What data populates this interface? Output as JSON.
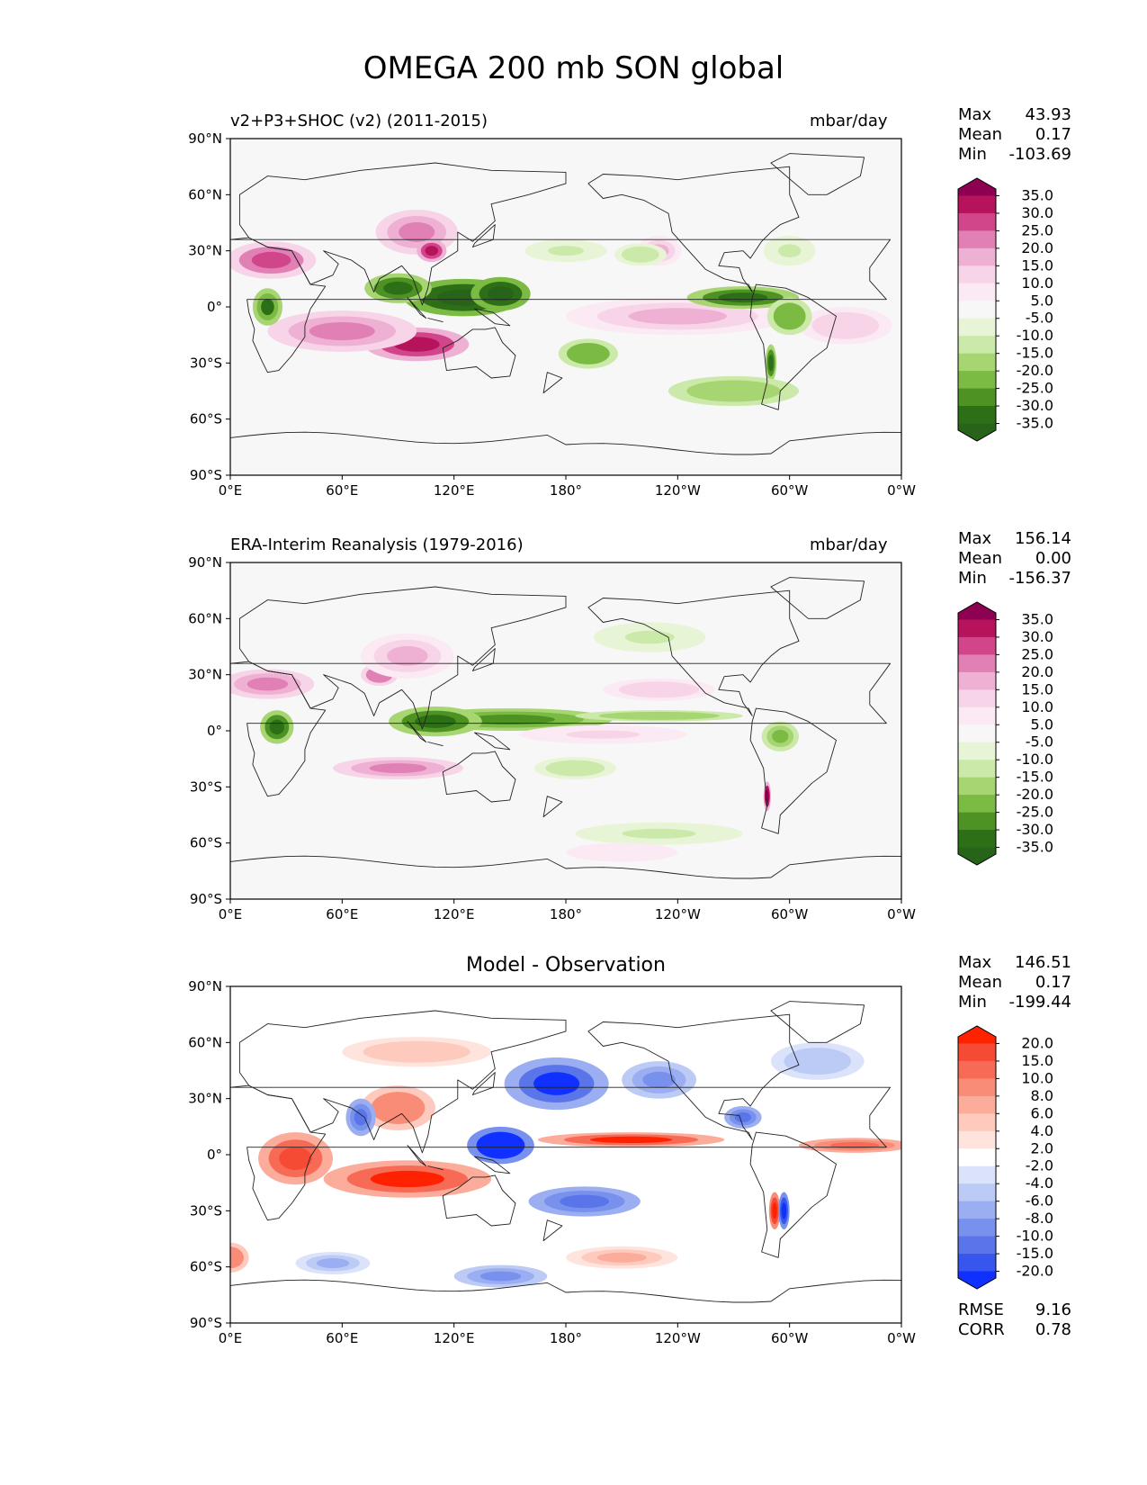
{
  "figure": {
    "title": "OMEGA 200 mb SON global"
  },
  "chart_data": [
    {
      "type": "heatmap",
      "panel": "test",
      "title_left": "v2+P3+SHOC (v2) (2011-2015)",
      "title_right": "mbar/day",
      "x_ticks": [
        "0°E",
        "60°E",
        "120°E",
        "180°",
        "120°W",
        "60°W",
        "0°W"
      ],
      "y_ticks": [
        "90°N",
        "60°N",
        "30°N",
        "0°",
        "30°S",
        "60°S",
        "90°S"
      ],
      "xlim": [
        0,
        360
      ],
      "ylim": [
        -90,
        90
      ],
      "stats": {
        "max_label": "Max",
        "max": "43.93",
        "mean_label": "Mean",
        "mean": "0.17",
        "min_label": "Min",
        "min": "-103.69"
      },
      "colorbar": {
        "labels": [
          "35.0",
          "30.0",
          "25.0",
          "20.0",
          "15.0",
          "10.0",
          "5.0",
          "-5.0",
          "-10.0",
          "-15.0",
          "-20.0",
          "-25.0",
          "-30.0",
          "-35.0"
        ],
        "colors": [
          "#8e0152",
          "#b7135d",
          "#d1458b",
          "#e080b4",
          "#efb1d3",
          "#f7d4e7",
          "#fbe9f3",
          "#f7f7f7",
          "#e7f5d6",
          "#cbe9a8",
          "#a6d572",
          "#7bbb43",
          "#4d9222",
          "#2d6f17",
          "#276419"
        ]
      },
      "features": [
        {
          "lon": 100,
          "lat": -20,
          "v": 32,
          "rx": 28,
          "ry": 9
        },
        {
          "lon": 60,
          "lat": -13,
          "v": 18,
          "rx": 40,
          "ry": 11
        },
        {
          "lon": 22,
          "lat": 25,
          "v": 25,
          "rx": 24,
          "ry": 10
        },
        {
          "lon": 100,
          "lat": 40,
          "v": 18,
          "rx": 22,
          "ry": 12
        },
        {
          "lon": 108,
          "lat": 30,
          "v": 30,
          "rx": 8,
          "ry": 6
        },
        {
          "lon": 240,
          "lat": -5,
          "v": 14,
          "rx": 60,
          "ry": 10
        },
        {
          "lon": 230,
          "lat": 30,
          "v": 14,
          "rx": 12,
          "ry": 8
        },
        {
          "lon": 330,
          "lat": -10,
          "v": 12,
          "rx": 25,
          "ry": 10
        },
        {
          "lon": 125,
          "lat": 5,
          "v": -36,
          "rx": 32,
          "ry": 10
        },
        {
          "lon": 145,
          "lat": 7,
          "v": -38,
          "rx": 16,
          "ry": 9
        },
        {
          "lon": 90,
          "lat": 10,
          "v": -30,
          "rx": 18,
          "ry": 8
        },
        {
          "lon": 20,
          "lat": 0,
          "v": -28,
          "rx": 8,
          "ry": 10
        },
        {
          "lon": 192,
          "lat": -25,
          "v": -22,
          "rx": 16,
          "ry": 8
        },
        {
          "lon": 275,
          "lat": 5,
          "v": -30,
          "rx": 30,
          "ry": 6
        },
        {
          "lon": 300,
          "lat": -5,
          "v": -22,
          "rx": 12,
          "ry": 10
        },
        {
          "lon": 290,
          "lat": -30,
          "v": -30,
          "rx": 3,
          "ry": 10
        },
        {
          "lon": 270,
          "lat": -45,
          "v": -16,
          "rx": 35,
          "ry": 8
        },
        {
          "lon": 220,
          "lat": 28,
          "v": -10,
          "rx": 14,
          "ry": 6
        },
        {
          "lon": 300,
          "lat": 30,
          "v": -8,
          "rx": 14,
          "ry": 8
        },
        {
          "lon": 180,
          "lat": 30,
          "v": -8,
          "rx": 22,
          "ry": 6
        }
      ]
    },
    {
      "type": "heatmap",
      "panel": "reference",
      "title_left": "ERA-Interim Reanalysis (1979-2016)",
      "title_right": "mbar/day",
      "x_ticks": [
        "0°E",
        "60°E",
        "120°E",
        "180°",
        "120°W",
        "60°W",
        "0°W"
      ],
      "y_ticks": [
        "90°N",
        "60°N",
        "30°N",
        "0°",
        "30°S",
        "60°S",
        "90°S"
      ],
      "xlim": [
        0,
        360
      ],
      "ylim": [
        -90,
        90
      ],
      "stats": {
        "max_label": "Max",
        "max": "156.14",
        "mean_label": "Mean",
        "mean": "0.00",
        "min_label": "Min",
        "min": "-156.37"
      },
      "colorbar": {
        "labels": [
          "35.0",
          "30.0",
          "25.0",
          "20.0",
          "15.0",
          "10.0",
          "5.0",
          "-5.0",
          "-10.0",
          "-15.0",
          "-20.0",
          "-25.0",
          "-30.0",
          "-35.0"
        ],
        "colors": [
          "#8e0152",
          "#b7135d",
          "#d1458b",
          "#e080b4",
          "#efb1d3",
          "#f7d4e7",
          "#fbe9f3",
          "#f7f7f7",
          "#e7f5d6",
          "#cbe9a8",
          "#a6d572",
          "#7bbb43",
          "#4d9222",
          "#2d6f17",
          "#276419"
        ]
      },
      "features": [
        {
          "lon": 150,
          "lat": 6,
          "v": -26,
          "rx": 55,
          "ry": 6
        },
        {
          "lon": 110,
          "lat": 5,
          "v": -30,
          "rx": 25,
          "ry": 8
        },
        {
          "lon": 230,
          "lat": 8,
          "v": -16,
          "rx": 45,
          "ry": 3
        },
        {
          "lon": 25,
          "lat": 2,
          "v": -32,
          "rx": 9,
          "ry": 9
        },
        {
          "lon": 295,
          "lat": -3,
          "v": -18,
          "rx": 10,
          "ry": 8
        },
        {
          "lon": 185,
          "lat": -20,
          "v": -12,
          "rx": 22,
          "ry": 6
        },
        {
          "lon": 225,
          "lat": 50,
          "v": -8,
          "rx": 30,
          "ry": 8
        },
        {
          "lon": 230,
          "lat": -55,
          "v": -8,
          "rx": 45,
          "ry": 6
        },
        {
          "lon": 288,
          "lat": -35,
          "v": 35,
          "rx": 2,
          "ry": 8
        },
        {
          "lon": 80,
          "lat": 30,
          "v": 22,
          "rx": 10,
          "ry": 6
        },
        {
          "lon": 95,
          "lat": 40,
          "v": 14,
          "rx": 25,
          "ry": 12
        },
        {
          "lon": 20,
          "lat": 25,
          "v": 18,
          "rx": 25,
          "ry": 8
        },
        {
          "lon": 90,
          "lat": -20,
          "v": 18,
          "rx": 35,
          "ry": 6
        },
        {
          "lon": 230,
          "lat": 22,
          "v": 10,
          "rx": 30,
          "ry": 6
        },
        {
          "lon": 200,
          "lat": -2,
          "v": 8,
          "rx": 45,
          "ry": 5
        },
        {
          "lon": 210,
          "lat": -65,
          "v": 6,
          "rx": 30,
          "ry": 5
        }
      ]
    },
    {
      "type": "heatmap",
      "panel": "difference",
      "title": "Model - Observation",
      "x_ticks": [
        "0°E",
        "60°E",
        "120°E",
        "180°",
        "120°W",
        "60°W",
        "0°W"
      ],
      "y_ticks": [
        "90°N",
        "60°N",
        "30°N",
        "0°",
        "30°S",
        "60°S",
        "90°S"
      ],
      "xlim": [
        0,
        360
      ],
      "ylim": [
        -90,
        90
      ],
      "stats": {
        "max_label": "Max",
        "max": "146.51",
        "mean_label": "Mean",
        "mean": "0.17",
        "min_label": "Min",
        "min": "-199.44"
      },
      "metrics": {
        "rmse_label": "RMSE",
        "rmse": "9.16",
        "corr_label": "CORR",
        "corr": "0.78"
      },
      "colorbar": {
        "labels": [
          "20.0",
          "15.0",
          "10.0",
          "8.0",
          "6.0",
          "4.0",
          "2.0",
          "-2.0",
          "-4.0",
          "-6.0",
          "-8.0",
          "-10.0",
          "-15.0",
          "-20.0"
        ],
        "colors": [
          "#ff2200",
          "#f54a33",
          "#f76a55",
          "#f98c77",
          "#fbac9a",
          "#fdcabd",
          "#fee4dc",
          "#ffffff",
          "#dbe3fb",
          "#bccaf6",
          "#9aaef1",
          "#7791ec",
          "#5a74ea",
          "#3656ee",
          "#1030ff"
        ]
      },
      "features": [
        {
          "lon": 145,
          "lat": 5,
          "v": -22,
          "rx": 18,
          "ry": 10
        },
        {
          "lon": 215,
          "lat": 8,
          "v": 18,
          "rx": 50,
          "ry": 4
        },
        {
          "lon": 335,
          "lat": 5,
          "v": 14,
          "rx": 30,
          "ry": 4
        },
        {
          "lon": 95,
          "lat": -13,
          "v": 18,
          "rx": 45,
          "ry": 10
        },
        {
          "lon": 35,
          "lat": -2,
          "v": 16,
          "rx": 20,
          "ry": 14
        },
        {
          "lon": 190,
          "lat": -25,
          "v": -14,
          "rx": 30,
          "ry": 8
        },
        {
          "lon": 175,
          "lat": 38,
          "v": -18,
          "rx": 28,
          "ry": 14
        },
        {
          "lon": 230,
          "lat": 40,
          "v": -10,
          "rx": 20,
          "ry": 10
        },
        {
          "lon": 90,
          "lat": 25,
          "v": 12,
          "rx": 20,
          "ry": 12
        },
        {
          "lon": 70,
          "lat": 20,
          "v": -14,
          "rx": 8,
          "ry": 10
        },
        {
          "lon": 292,
          "lat": -30,
          "v": 20,
          "rx": 3,
          "ry": 10
        },
        {
          "lon": 297,
          "lat": -30,
          "v": -20,
          "rx": 3,
          "ry": 10
        },
        {
          "lon": 275,
          "lat": 20,
          "v": -14,
          "rx": 10,
          "ry": 6
        },
        {
          "lon": 0,
          "lat": -55,
          "v": 12,
          "rx": 10,
          "ry": 8
        },
        {
          "lon": 145,
          "lat": -65,
          "v": -10,
          "rx": 25,
          "ry": 6
        },
        {
          "lon": 210,
          "lat": -55,
          "v": 8,
          "rx": 30,
          "ry": 6
        },
        {
          "lon": 55,
          "lat": -58,
          "v": -8,
          "rx": 20,
          "ry": 6
        },
        {
          "lon": 100,
          "lat": 55,
          "v": 6,
          "rx": 40,
          "ry": 8
        },
        {
          "lon": 315,
          "lat": 50,
          "v": -6,
          "rx": 25,
          "ry": 10
        }
      ]
    }
  ]
}
